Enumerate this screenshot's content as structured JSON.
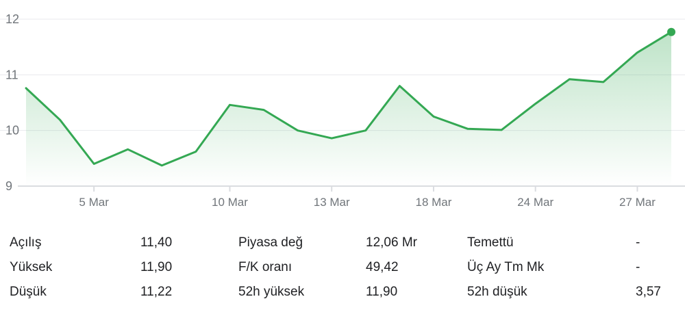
{
  "chart_data": {
    "type": "area",
    "x": [
      "",
      "",
      "5 Mar",
      "",
      "",
      "",
      "10 Mar",
      "",
      "",
      "13 Mar",
      "",
      "",
      "18 Mar",
      "",
      "",
      "24 Mar",
      "",
      "",
      "27 Mar",
      ""
    ],
    "values": [
      10.76,
      10.19,
      9.4,
      9.66,
      9.37,
      9.62,
      10.46,
      10.37,
      10.0,
      9.86,
      10.0,
      10.8,
      10.25,
      10.03,
      10.01,
      10.48,
      10.92,
      10.87,
      11.4,
      11.77
    ],
    "yticks": [
      9,
      10,
      11,
      12
    ],
    "ylim": [
      9,
      12
    ],
    "xticks": [
      "5 Mar",
      "10 Mar",
      "13 Mar",
      "18 Mar",
      "24 Mar",
      "27 Mar"
    ],
    "grid": true,
    "colors": {
      "line": "#34a853",
      "fill": "#34a853",
      "grid": "#e8eaed",
      "axis": "#dadce0"
    }
  },
  "stats": {
    "rows": [
      [
        {
          "label": "Açılış",
          "value": "11,40"
        },
        {
          "label": "Piyasa değ",
          "value": "12,06 Mr"
        },
        {
          "label": "Temettü",
          "value": "-"
        }
      ],
      [
        {
          "label": "Yüksek",
          "value": "11,90"
        },
        {
          "label": "F/K oranı",
          "value": "49,42"
        },
        {
          "label": "Üç Ay Tm Mk",
          "value": "-"
        }
      ],
      [
        {
          "label": "Düşük",
          "value": "11,22"
        },
        {
          "label": "52h yüksek",
          "value": "11,90"
        },
        {
          "label": "52h düşük",
          "value": "3,57"
        }
      ]
    ]
  }
}
